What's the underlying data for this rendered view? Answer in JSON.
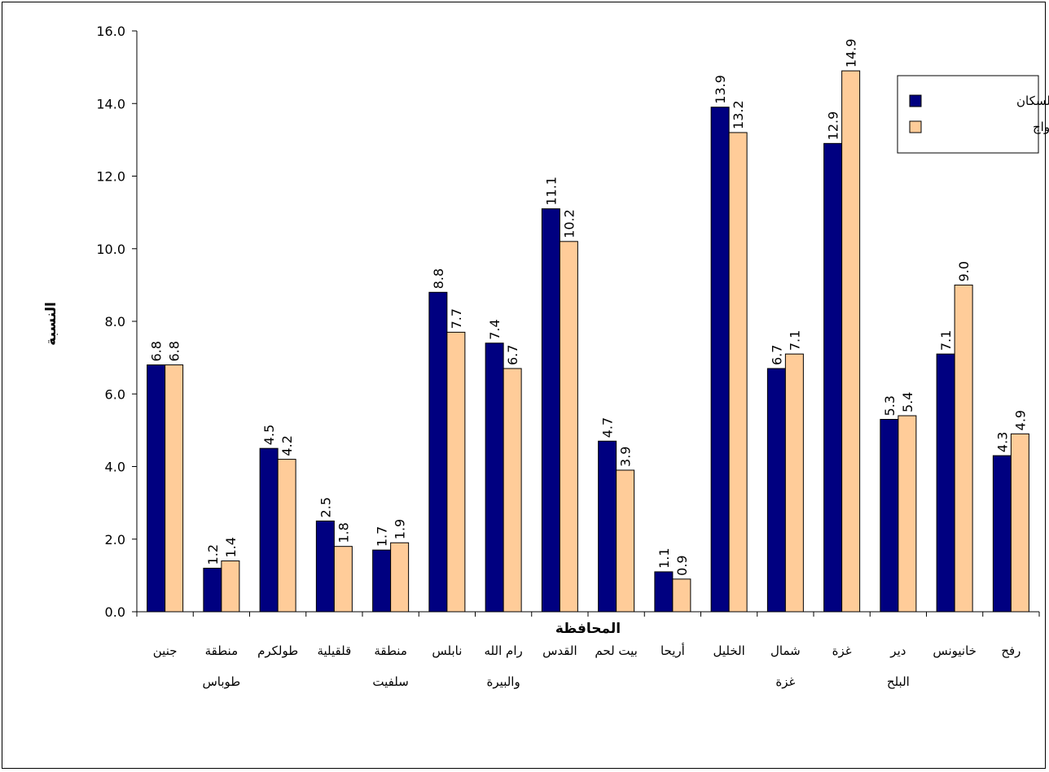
{
  "chart_data": {
    "type": "bar",
    "xlabel": "المحافظة",
    "ylabel": "النسبة",
    "ylim": [
      0,
      16
    ],
    "yticks": [
      "0.0",
      "2.0",
      "4.0",
      "6.0",
      "8.0",
      "10.0",
      "12.0",
      "14.0",
      "16.0"
    ],
    "grid": false,
    "legend_position": "top-right",
    "categories": [
      [
        "جنين"
      ],
      [
        "منطقة",
        "طوباس"
      ],
      [
        "طولكرم"
      ],
      [
        "قلقيلية"
      ],
      [
        "منطقة",
        "سلفيت"
      ],
      [
        "نابلس"
      ],
      [
        "رام الله",
        "والبيرة"
      ],
      [
        "القدس"
      ],
      [
        "بيت لحم"
      ],
      [
        "أريحا"
      ],
      [
        "الخليل"
      ],
      [
        "شمال",
        "غزة"
      ],
      [
        "غزة"
      ],
      [
        "دير",
        "البلح"
      ],
      [
        "خانيونس"
      ],
      [
        "رفح"
      ]
    ],
    "series": [
      {
        "name": "نسبة السكان",
        "color": "#000080",
        "values": [
          6.8,
          1.2,
          4.5,
          2.5,
          1.7,
          8.8,
          7.4,
          11.1,
          4.7,
          1.1,
          13.9,
          6.7,
          12.9,
          5.3,
          7.1,
          4.3
        ]
      },
      {
        "name": "نسبة عقود الزواج",
        "color": "#FFCC99",
        "values": [
          6.8,
          1.4,
          4.2,
          1.8,
          1.9,
          7.7,
          6.7,
          10.2,
          3.9,
          0.9,
          13.2,
          7.1,
          14.9,
          5.4,
          9.0,
          4.9
        ]
      }
    ]
  }
}
